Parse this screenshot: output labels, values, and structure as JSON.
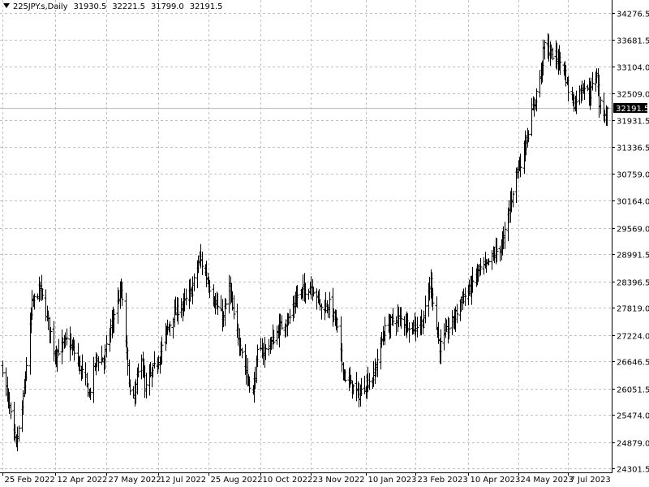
{
  "header": {
    "symbol": "225JPY.s,Daily",
    "open": "31930.5",
    "high": "32221.5",
    "low": "31799.0",
    "close": "32191.5"
  },
  "price_label": "32191.5",
  "chart_data": {
    "type": "ohlc",
    "title": "225JPY.s,Daily",
    "xlabel": "",
    "ylabel": "",
    "ylim": [
      24301.5,
      34276.5
    ],
    "grid": true,
    "grid_style": "dashed",
    "colors": {
      "bars": "#000000",
      "grid": "#c0c0c0",
      "current_price_line": "#c0c0c0",
      "background": "#ffffff"
    },
    "y_ticks": [
      "34276.5",
      "33681.5",
      "33104.0",
      "32509.0",
      "31931.5",
      "31336.5",
      "30759.0",
      "30164.0",
      "29569.0",
      "28991.5",
      "28396.5",
      "27819.0",
      "27224.0",
      "26646.5",
      "26051.5",
      "25474.0",
      "24879.0",
      "24301.5"
    ],
    "x_ticks": [
      "25 Feb 2022",
      "12 Apr 2022",
      "27 May 2022",
      "12 Jul 2022",
      "25 Aug 2022",
      "10 Oct 2022",
      "23 Nov 2022",
      "10 Jan 2023",
      "23 Feb 2023",
      "10 Apr 2023",
      "24 May 2023",
      "7 Jul 2023"
    ],
    "last_bar": {
      "open": 31930.5,
      "high": 32221.5,
      "low": 31799.0,
      "close": 32191.5
    },
    "close_path": [
      [
        "25 Feb 2022",
        26500
      ],
      [
        "7 Mar 2022",
        25000
      ],
      [
        "9 Mar 2022",
        24800
      ],
      [
        "15 Mar 2022",
        25800
      ],
      [
        "23 Mar 2022",
        27900
      ],
      [
        "30 Mar 2022",
        28250
      ],
      [
        "6 Apr 2022",
        27500
      ],
      [
        "12 Apr 2022",
        26800
      ],
      [
        "22 Apr 2022",
        27100
      ],
      [
        "28 Apr 2022",
        26900
      ],
      [
        "9 May 2022",
        26200
      ],
      [
        "12 May 2022",
        25900
      ],
      [
        "18 May 2022",
        26700
      ],
      [
        "25 May 2022",
        26700
      ],
      [
        "3 Jun 2022",
        27700
      ],
      [
        "9 Jun 2022",
        28200
      ],
      [
        "17 Jun 2022",
        25950
      ],
      [
        "20 Jun 2022",
        25800
      ],
      [
        "27 Jun 2022",
        26800
      ],
      [
        "30 Jun 2022",
        26000
      ],
      [
        "6 Jul 2022",
        26400
      ],
      [
        "12 Jul 2022",
        26700
      ],
      [
        "19 Jul 2022",
        27300
      ],
      [
        "26 Jul 2022",
        27700
      ],
      [
        "3 Aug 2022",
        27900
      ],
      [
        "10 Aug 2022",
        28200
      ],
      [
        "17 Aug 2022",
        28900
      ],
      [
        "23 Aug 2022",
        28500
      ],
      [
        "31 Aug 2022",
        27900
      ],
      [
        "7 Sep 2022",
        27600
      ],
      [
        "12 Sep 2022",
        28300
      ],
      [
        "16 Sep 2022",
        27600
      ],
      [
        "22 Sep 2022",
        27000
      ],
      [
        "28 Sep 2022",
        26300
      ],
      [
        "3 Oct 2022",
        25950
      ],
      [
        "7 Oct 2022",
        26800
      ],
      [
        "14 Oct 2022",
        26900
      ],
      [
        "20 Oct 2022",
        27100
      ],
      [
        "27 Oct 2022",
        27400
      ],
      [
        "4 Nov 2022",
        27600
      ],
      [
        "11 Nov 2022",
        28100
      ],
      [
        "17 Nov 2022",
        28200
      ],
      [
        "23 Nov 2022",
        28300
      ],
      [
        "28 Nov 2022",
        28100
      ],
      [
        "2 Dec 2022",
        27800
      ],
      [
        "9 Dec 2022",
        27900
      ],
      [
        "15 Dec 2022",
        27500
      ],
      [
        "20 Dec 2022",
        26600
      ],
      [
        "23 Dec 2022",
        26300
      ],
      [
        "29 Dec 2022",
        26100
      ],
      [
        "4 Jan 2023",
        25900
      ],
      [
        "11 Jan 2023",
        26200
      ],
      [
        "17 Jan 2023",
        26300
      ],
      [
        "20 Jan 2023",
        26700
      ],
      [
        "26 Jan 2023",
        27300
      ],
      [
        "1 Feb 2023",
        27500
      ],
      [
        "7 Feb 2023",
        27600
      ],
      [
        "14 Feb 2023",
        27500
      ],
      [
        "21 Feb 2023",
        27400
      ],
      [
        "1 Mar 2023",
        27500
      ],
      [
        "8 Mar 2023",
        28400
      ],
      [
        "13 Mar 2023",
        27400
      ],
      [
        "16 Mar 2023",
        26950
      ],
      [
        "22 Mar 2023",
        27300
      ],
      [
        "29 Mar 2023",
        27600
      ],
      [
        "4 Apr 2023",
        28000
      ],
      [
        "11 Apr 2023",
        28200
      ],
      [
        "18 Apr 2023",
        28600
      ],
      [
        "25 Apr 2023",
        28700
      ],
      [
        "3 May 2023",
        29000
      ],
      [
        "10 May 2023",
        29200
      ],
      [
        "17 May 2023",
        30100
      ],
      [
        "22 May 2023",
        30800
      ],
      [
        "26 May 2023",
        31000
      ],
      [
        "1 Jun 2023",
        31600
      ],
      [
        "7 Jun 2023",
        32300
      ],
      [
        "13 Jun 2023",
        33000
      ],
      [
        "16 Jun 2023",
        33600
      ],
      [
        "21 Jun 2023",
        33400
      ],
      [
        "27 Jun 2023",
        33300
      ],
      [
        "3 Jul 2023",
        33100
      ],
      [
        "7 Jul 2023",
        32600
      ],
      [
        "12 Jul 2023",
        32300
      ],
      [
        "14 Jul 2023",
        32400
      ],
      [
        "20 Jul 2023",
        32700
      ],
      [
        "26 Jul 2023",
        32500
      ],
      [
        "1 Aug 2023",
        33000
      ],
      [
        "3 Aug 2023",
        32300
      ],
      [
        "8 Aug 2023",
        32100
      ],
      [
        "10 Aug 2023",
        32191.5
      ]
    ]
  }
}
